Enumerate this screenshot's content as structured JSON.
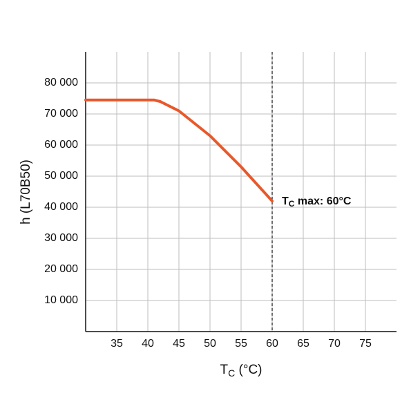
{
  "chart_data": {
    "type": "line",
    "y_label": "h (L70B50)",
    "x_label": {
      "main": "T",
      "sub": "C",
      "rest": " (°C)"
    },
    "x": [
      30,
      41,
      42,
      45,
      50,
      55,
      60
    ],
    "series": [
      {
        "color": "#e8582a",
        "values": [
          74500,
          74500,
          74000,
          71000,
          63000,
          53000,
          42000
        ]
      }
    ],
    "xlim": [
      30,
      80
    ],
    "xticks": [
      35,
      40,
      45,
      50,
      55,
      60,
      65,
      70,
      75
    ],
    "ylim": [
      0,
      90000
    ],
    "yticks": [
      {
        "value": 10000,
        "label": "10 000"
      },
      {
        "value": 20000,
        "label": "20 000"
      },
      {
        "value": 30000,
        "label": "30 000"
      },
      {
        "value": 40000,
        "label": "40 000"
      },
      {
        "value": 50000,
        "label": "50 000"
      },
      {
        "value": 60000,
        "label": "60 000"
      },
      {
        "value": 70000,
        "label": "70 000"
      },
      {
        "value": 80000,
        "label": "80 000"
      }
    ],
    "grid": true,
    "annotation": {
      "x": 60,
      "y": 42000,
      "main": "T",
      "sub": "C",
      "rest": " max: 60°C"
    }
  }
}
